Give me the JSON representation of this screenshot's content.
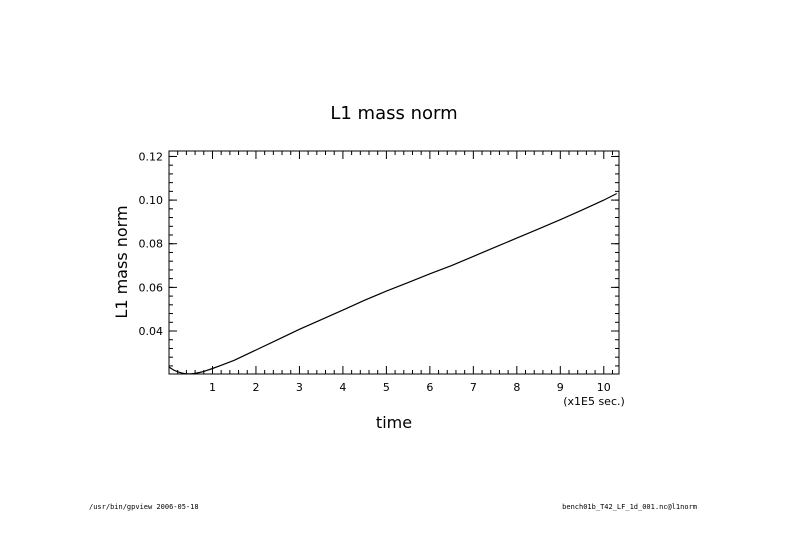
{
  "footer": {
    "left": "/usr/bin/gpview  2006-05-18",
    "right": "bench01b_T42_LF_1d_001.nc@l1norm"
  },
  "chart_data": {
    "type": "line",
    "title": "L1 mass norm",
    "xlabel": "time",
    "ylabel": "L1 mass norm",
    "x_unit_label": "(x1E5 sec.)",
    "xlim": [
      0,
      10.35
    ],
    "ylim": [
      0.0203,
      0.1225
    ],
    "x_ticks": [
      1,
      2,
      3,
      4,
      5,
      6,
      7,
      8,
      9,
      10
    ],
    "x_tick_labels": [
      "1",
      "2",
      "3",
      "4",
      "5",
      "6",
      "7",
      "8",
      "9",
      "10"
    ],
    "y_ticks": [
      0.04,
      0.06,
      0.08,
      0.1,
      0.12
    ],
    "y_tick_labels": [
      "0.04",
      "0.06",
      "0.08",
      "0.10",
      "0.12"
    ],
    "grid": false,
    "series": [
      {
        "x": [
          0,
          0.1,
          0.2,
          0.3,
          0.4,
          0.5,
          0.6,
          0.7,
          0.8,
          1.0,
          1.2,
          1.5,
          2.0,
          2.5,
          3.0,
          3.5,
          4.0,
          4.5,
          5.0,
          5.5,
          6.0,
          6.5,
          7.0,
          7.5,
          8.0,
          8.5,
          9.0,
          9.5,
          10.0,
          10.3
        ],
        "y": [
          0.0235,
          0.0222,
          0.0213,
          0.0207,
          0.0204,
          0.0204,
          0.0206,
          0.021,
          0.0215,
          0.0228,
          0.0243,
          0.0266,
          0.0313,
          0.036,
          0.0408,
          0.0452,
          0.0496,
          0.0541,
          0.0583,
          0.0622,
          0.0662,
          0.07,
          0.0742,
          0.0784,
          0.0826,
          0.0868,
          0.091,
          0.0954,
          0.1,
          0.103
        ]
      }
    ]
  }
}
